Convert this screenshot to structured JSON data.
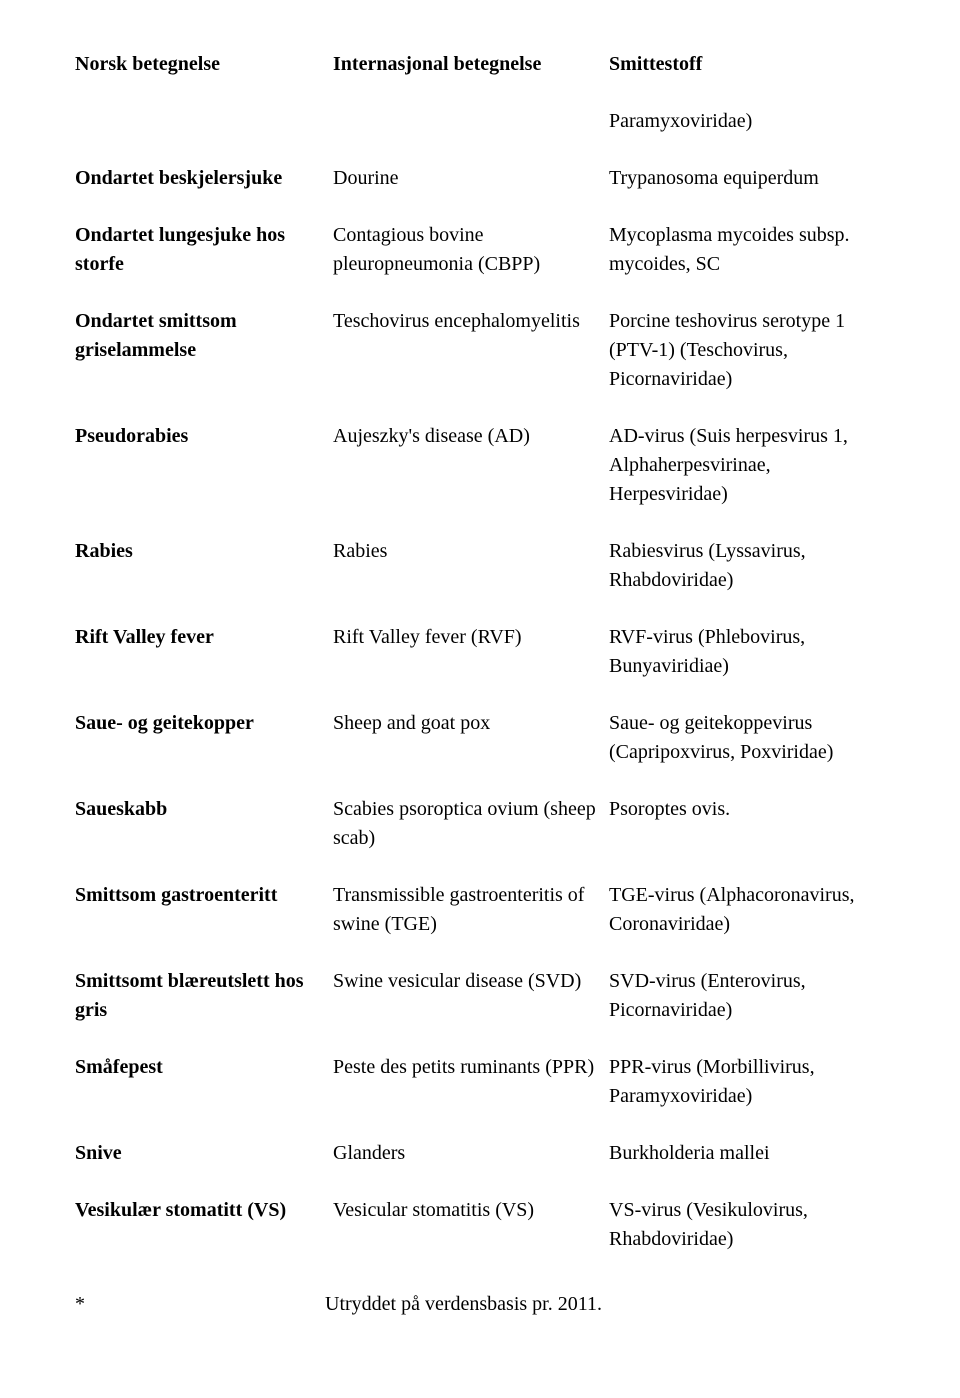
{
  "headers": {
    "col1": "Norsk betegnelse",
    "col2": "Internasjonal betegnelse",
    "col3": "Smittestoff"
  },
  "orphan": "Paramyxoviridae)",
  "rows": [
    {
      "c1": "Ondartet beskjelersjuke",
      "c2": "Dourine",
      "c3": "Trypanosoma equiperdum"
    },
    {
      "c1": "Ondartet lungesjuke hos storfe",
      "c2": "Contagious bovine pleuropneumonia (CBPP)",
      "c3": "Mycoplasma mycoides subsp. mycoides, SC"
    },
    {
      "c1": "Ondartet smittsom griselammelse",
      "c2": "Teschovirus encephalomyelitis",
      "c3": "Porcine teshovirus serotype 1 (PTV-1) (Teschovirus, Picornaviridae)"
    },
    {
      "c1": "Pseudorabies",
      "c2": "Aujeszky's disease (AD)",
      "c3": "AD-virus (Suis herpesvirus 1, Alphaherpesvirinae, Herpesviridae)"
    },
    {
      "c1": "Rabies",
      "c2": "Rabies",
      "c3": "Rabiesvirus (Lyssavirus, Rhabdoviridae)"
    },
    {
      "c1": "Rift Valley fever",
      "c2": "Rift Valley fever (RVF)",
      "c3": "RVF-virus (Phlebovirus, Bunyaviridiae)"
    },
    {
      "c1": "Saue- og geitekopper",
      "c2": "Sheep and goat pox",
      "c3": "Saue- og geitekoppevirus (Capripoxvirus, Poxviridae)"
    },
    {
      "c1": "Saueskabb",
      "c2": "Scabies psoroptica ovium (sheep scab)",
      "c3": "Psoroptes ovis."
    },
    {
      "c1": "Smittsom gastroenteritt",
      "c2": "Transmissible gastroenteritis of swine (TGE)",
      "c3": "TGE-virus (Alphacoronavirus, Coronaviridae)"
    },
    {
      "c1": "Smittsomt blæreutslett hos gris",
      "c2": "Swine vesicular disease (SVD)",
      "c3": "SVD-virus (Enterovirus, Picornaviridae)"
    },
    {
      "c1": "Småfepest",
      "c2": "Peste des petits ruminants (PPR)",
      "c3": "PPR-virus (Morbillivirus, Paramyxoviridae)"
    },
    {
      "c1": "Snive",
      "c2": "Glanders",
      "c3": "Burkholderia mallei"
    },
    {
      "c1": "Vesikulær stomatitt (VS)",
      "c2": "Vesicular stomatitis (VS)",
      "c3": "VS-virus (Vesikulovirus, Rhabdoviridae)"
    }
  ],
  "footnote": {
    "mark": "*",
    "text": "Utryddet på verdensbasis pr. 2011."
  }
}
